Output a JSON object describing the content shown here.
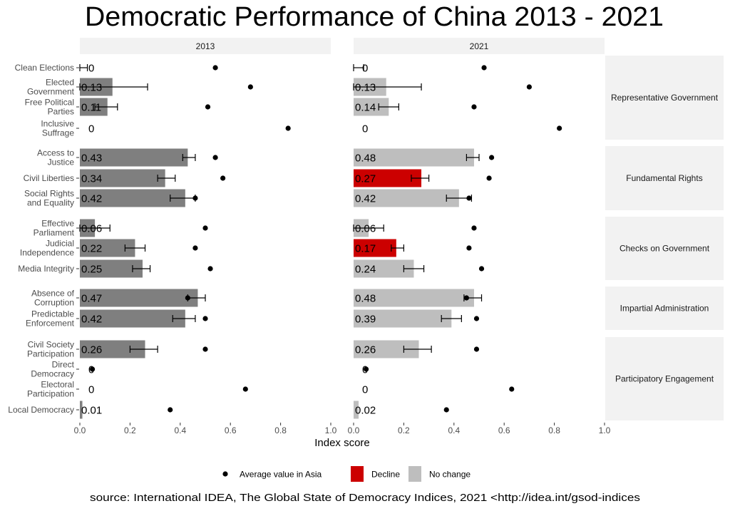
{
  "chart_data": {
    "type": "bar",
    "title": "Democratic Performance of China 2013 - 2021",
    "xlabel": "Index score",
    "xlim": [
      0,
      1
    ],
    "xticks": [
      "0.0",
      "0.2",
      "0.4",
      "0.6",
      "0.8",
      "1.0"
    ],
    "xtick_values": [
      0,
      0.2,
      0.4,
      0.6,
      0.8,
      1.0
    ],
    "panels": [
      "2013",
      "2021"
    ],
    "groups": [
      {
        "name": "Representative Government",
        "items": [
          0,
          1,
          2,
          3
        ]
      },
      {
        "name": "Fundamental Rights",
        "items": [
          4,
          5,
          6
        ]
      },
      {
        "name": "Checks on Government",
        "items": [
          7,
          8,
          9
        ]
      },
      {
        "name": "Impartial Administration",
        "items": [
          10,
          11
        ]
      },
      {
        "name": "Participatory Engagement",
        "items": [
          12,
          13,
          14,
          15
        ]
      }
    ],
    "categories": [
      [
        "Clean Elections"
      ],
      [
        "Elected",
        "Government"
      ],
      [
        "Free Political",
        "Parties"
      ],
      [
        "Inclusive",
        "Suffrage"
      ],
      [
        "Access to",
        "Justice"
      ],
      [
        "Civil Liberties"
      ],
      [
        "Social Rights",
        "and Equality"
      ],
      [
        "Effective",
        "Parliament"
      ],
      [
        "Judicial",
        "Independence"
      ],
      [
        "Media Integrity"
      ],
      [
        "Absence of",
        "Corruption"
      ],
      [
        "Predictable",
        "Enforcement"
      ],
      [
        "Civil Society",
        "Participation"
      ],
      [
        "Direct",
        "Democracy"
      ],
      [
        "Electoral",
        "Participation"
      ],
      [
        "Local Democracy"
      ]
    ],
    "series": [
      {
        "name": "2013",
        "values": [
          0,
          0.13,
          0.11,
          0,
          0.43,
          0.34,
          0.42,
          0.06,
          0.22,
          0.25,
          0.47,
          0.42,
          0.26,
          0,
          0,
          0.01
        ],
        "labels": [
          "0",
          "0.13",
          "0.11",
          "0",
          "0.43",
          "0.34",
          "0.42",
          "0.06",
          "0.22",
          "0.25",
          "0.47",
          "0.42",
          "0.26",
          "0",
          "0",
          "0.01"
        ],
        "error_low": [
          0,
          0,
          0.06,
          null,
          0.41,
          0.31,
          0.36,
          0,
          0.18,
          0.21,
          0.43,
          0.37,
          0.2,
          null,
          null,
          null
        ],
        "error_high": [
          0.03,
          0.27,
          0.15,
          null,
          0.46,
          0.38,
          0.46,
          0.12,
          0.26,
          0.28,
          0.5,
          0.46,
          0.31,
          null,
          null,
          null
        ],
        "status": [
          "base",
          "base",
          "base",
          "base",
          "base",
          "base",
          "base",
          "base",
          "base",
          "base",
          "base",
          "base",
          "base",
          "base",
          "base",
          "base"
        ],
        "asia_avg": [
          0.54,
          0.68,
          0.51,
          0.83,
          0.54,
          0.57,
          0.46,
          0.5,
          0.46,
          0.52,
          0.43,
          0.5,
          0.5,
          0.05,
          0.66,
          0.36
        ]
      },
      {
        "name": "2021",
        "values": [
          0,
          0.13,
          0.14,
          0,
          0.48,
          0.27,
          0.42,
          0.06,
          0.17,
          0.24,
          0.48,
          0.39,
          0.26,
          0,
          0,
          0.02
        ],
        "labels": [
          "0",
          "0.13",
          "0.14",
          "0",
          "0.48",
          "0.27",
          "0.42",
          "0.06",
          "0.17",
          "0.24",
          "0.48",
          "0.39",
          "0.26",
          "0",
          "0",
          "0.02"
        ],
        "error_low": [
          0,
          0,
          0.1,
          null,
          0.45,
          0.23,
          0.37,
          0,
          0.15,
          0.2,
          0.44,
          0.35,
          0.2,
          null,
          null,
          null
        ],
        "error_high": [
          0.04,
          0.27,
          0.18,
          null,
          0.5,
          0.3,
          0.47,
          0.12,
          0.2,
          0.28,
          0.51,
          0.43,
          0.31,
          null,
          null,
          null
        ],
        "status": [
          "nochange",
          "nochange",
          "nochange",
          "nochange",
          "nochange",
          "decline",
          "nochange",
          "nochange",
          "decline",
          "nochange",
          "nochange",
          "nochange",
          "nochange",
          "nochange",
          "nochange",
          "nochange"
        ],
        "asia_avg": [
          0.52,
          0.7,
          0.48,
          0.82,
          0.55,
          0.54,
          0.46,
          0.48,
          0.46,
          0.51,
          0.45,
          0.49,
          0.49,
          0.05,
          0.63,
          0.37
        ]
      }
    ],
    "legend": {
      "placement": "bottom",
      "items": [
        {
          "label": "Average value in Asia",
          "kind": "point"
        },
        {
          "label": "Decline",
          "kind": "fill",
          "color": "#CC0000"
        },
        {
          "label": "No change",
          "kind": "fill",
          "color": "#BEBEBE"
        }
      ]
    },
    "colors": {
      "base": "#7F7F7F",
      "decline": "#CC0000",
      "nochange": "#BEBEBE",
      "strip": "#F2F2F2",
      "point": "#000000"
    },
    "source": "source: International IDEA, The Global State of Democracy Indices, 2021 <http://idea.int/gsod-indices"
  }
}
